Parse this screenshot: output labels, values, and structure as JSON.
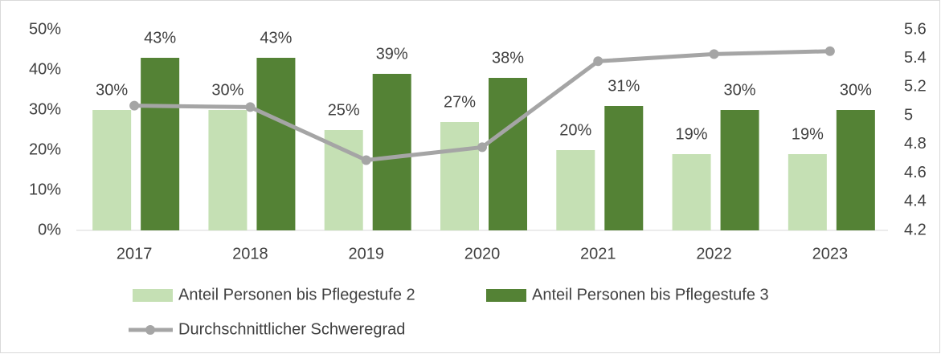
{
  "chart_data": {
    "type": "bar",
    "categories": [
      "2017",
      "2018",
      "2019",
      "2020",
      "2021",
      "2022",
      "2023"
    ],
    "series": [
      {
        "name": "Anteil Personen bis Pflegestufe 2",
        "color": "#c5e0b4",
        "values": [
          30,
          30,
          25,
          27,
          20,
          19,
          19
        ],
        "value_labels": [
          "30%",
          "30%",
          "25%",
          "27%",
          "20%",
          "19%",
          "19%"
        ]
      },
      {
        "name": "Anteil Personen bis Pflegestufe 3",
        "color": "#548235",
        "values": [
          43,
          43,
          39,
          38,
          31,
          30,
          30
        ],
        "value_labels": [
          "43%",
          "43%",
          "39%",
          "38%",
          "31%",
          "30%",
          "30%"
        ]
      },
      {
        "name": "Durchschnittlicher Schweregrad",
        "type": "line",
        "axis": "y2",
        "color": "#a5a5a5",
        "values": [
          5.07,
          5.06,
          4.69,
          4.78,
          5.38,
          5.43,
          5.45
        ]
      }
    ],
    "ylim": [
      0,
      50
    ],
    "yticks": [
      {
        "value": 0,
        "label": "0%"
      },
      {
        "value": 10,
        "label": "10%"
      },
      {
        "value": 20,
        "label": "20%"
      },
      {
        "value": 30,
        "label": "30%"
      },
      {
        "value": 40,
        "label": "40%"
      },
      {
        "value": 50,
        "label": "50%"
      }
    ],
    "y2lim": [
      4.2,
      5.6
    ],
    "y2ticks": [
      4.2,
      4.4,
      4.6,
      4.8,
      5,
      5.2,
      5.4,
      5.6
    ],
    "grid": false
  }
}
